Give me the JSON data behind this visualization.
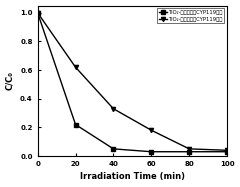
{
  "title": "",
  "xlabel": "Irradiation Time (min)",
  "ylabel": "C/C₀",
  "xlim": [
    0,
    100
  ],
  "ylim": [
    0,
    1.05
  ],
  "xticks": [
    0,
    20,
    40,
    60,
    80,
    100
  ],
  "yticks": [
    0.0,
    0.2,
    0.4,
    0.6,
    0.8,
    1.0
  ],
  "series1": {
    "x": [
      0,
      20,
      40,
      60,
      80,
      100
    ],
    "y": [
      1.0,
      0.22,
      0.05,
      0.03,
      0.03,
      0.03
    ],
    "label": "TiO₂-菲罗啦啦负CYP119酶前",
    "color": "#000000",
    "marker": "s",
    "linestyle": "-"
  },
  "series2": {
    "x": [
      0,
      20,
      40,
      60,
      80,
      100
    ],
    "y": [
      1.0,
      0.62,
      0.33,
      0.18,
      0.05,
      0.04
    ],
    "label": "TiO₂-菲罗啦啦负CYP119酶后",
    "color": "#000000",
    "marker": "v",
    "linestyle": "-"
  },
  "background_color": "#ffffff",
  "tick_labelsize": 5,
  "axis_labelsize": 6,
  "legend_fontsize": 3.8,
  "linewidth": 1.0,
  "markersize": 3
}
